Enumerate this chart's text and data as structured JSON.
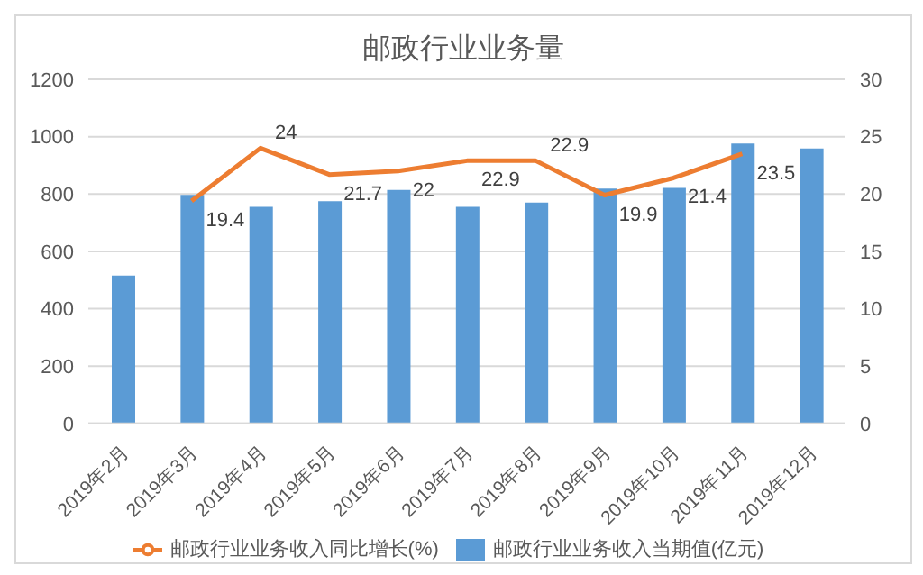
{
  "chart_data": {
    "type": "bar",
    "title": "邮政行业业务量",
    "categories": [
      "2019年2月",
      "2019年3月",
      "2019年4月",
      "2019年5月",
      "2019年6月",
      "2019年7月",
      "2019年8月",
      "2019年9月",
      "2019年10月",
      "2019年11月",
      "2019年12月"
    ],
    "series": [
      {
        "name": "邮政行业业务收入当期值(亿元)",
        "color": "#5b9bd5",
        "values": [
          516,
          797,
          755,
          775,
          814,
          755,
          770,
          819,
          821,
          976,
          959
        ]
      },
      {
        "name": "邮政行业业务收入同比增长(%)",
        "type": "line",
        "axis": "y2",
        "color": "#ed7d31",
        "values": [
          null,
          19.4,
          24,
          21.7,
          22,
          22.9,
          22.9,
          19.9,
          21.4,
          23.5,
          null
        ],
        "value_labels": [
          null,
          "19.4",
          "24",
          "21.7",
          "22",
          "22.9",
          "22.9",
          "19.9",
          "21.4",
          "23.5",
          null
        ]
      }
    ],
    "ylim": [
      0,
      1200
    ],
    "yticks": [
      0,
      200,
      400,
      600,
      800,
      1000,
      1200
    ],
    "y2lim": [
      0,
      30
    ],
    "y2ticks": [
      0,
      5,
      10,
      15,
      20,
      25,
      30
    ],
    "grid": "y",
    "legend": "bottom",
    "marker": "none"
  }
}
